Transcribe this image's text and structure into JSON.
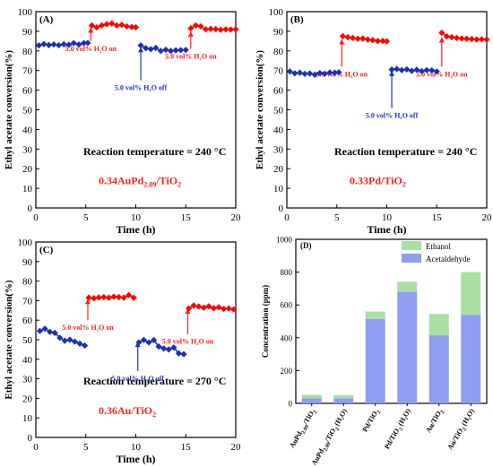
{
  "colors": {
    "axis": "#000000",
    "h2o_on": "#ff2020",
    "h2o_off": "#1f35b5",
    "pts_on": "#ff0000",
    "pts_off": "#1c2fb8",
    "ethanol": "#a9e0a1",
    "acetaldehyde": "#8f9ef0"
  },
  "chart_data": [
    {
      "panel": "(A)",
      "type": "scatter",
      "xlabel": "Time (h)",
      "ylabel": "Ethyl acetate conversion(%)",
      "xlim": [
        0,
        20
      ],
      "ylim": [
        0,
        100
      ],
      "xticks": [
        0,
        5,
        10,
        15,
        20
      ],
      "yticks": [
        0,
        10,
        20,
        30,
        40,
        50,
        60,
        70,
        80,
        90,
        100
      ],
      "temperature_label": "Reaction temperature = 240 °C",
      "catalyst": {
        "base": "0.34AuPd",
        "sub": "2.09",
        "mid": "/TiO",
        "sub2": "2"
      },
      "annotations": [
        {
          "text": "5.0 vol% H₂O on",
          "state": "on",
          "x": 5.5,
          "y_from": 85,
          "y_to": 92
        },
        {
          "text": "5.0 vol% H₂O off",
          "state": "off",
          "x": 10.5,
          "y_from": 65,
          "y_to": 82
        },
        {
          "text": "5.0 vol% H₂O on",
          "state": "on",
          "x": 15.5,
          "y_from": 81,
          "y_to": 90
        }
      ],
      "series": [
        {
          "state": "off",
          "x": [
            0.3,
            0.8,
            1.3,
            1.8,
            2.3,
            2.8,
            3.3,
            3.8,
            4.3,
            4.8,
            5.2
          ],
          "y": [
            82.8,
            83.5,
            83.0,
            83.3,
            82.9,
            83.4,
            83.1,
            84.0,
            83.2,
            84.0,
            84.1
          ]
        },
        {
          "state": "on",
          "x": [
            5.6,
            6.1,
            6.6,
            7.1,
            7.6,
            8.1,
            8.6,
            9.1,
            9.6,
            10.0
          ],
          "y": [
            93.0,
            92.0,
            93.0,
            93.6,
            94.0,
            93.0,
            93.3,
            92.5,
            92.2,
            92.0
          ]
        },
        {
          "state": "off",
          "x": [
            10.5,
            11.0,
            11.5,
            12.0,
            12.5,
            13.0,
            13.5,
            14.0,
            14.5,
            15.0
          ],
          "y": [
            82.8,
            81.4,
            80.9,
            81.5,
            80.0,
            80.6,
            80.0,
            80.3,
            80.4,
            80.5
          ]
        },
        {
          "state": "on",
          "x": [
            15.5,
            16.0,
            16.5,
            17.0,
            17.5,
            18.0,
            18.5,
            19.0,
            19.5,
            20.0
          ],
          "y": [
            91.5,
            93.0,
            92.5,
            91.0,
            91.2,
            91.1,
            90.8,
            91.0,
            90.9,
            91.0
          ]
        }
      ]
    },
    {
      "panel": "(B)",
      "type": "scatter",
      "xlabel": "Time (h)",
      "ylabel": "Ethyl acetate conversion(%)",
      "xlim": [
        0,
        20
      ],
      "ylim": [
        0,
        100
      ],
      "xticks": [
        0,
        5,
        10,
        15,
        20
      ],
      "yticks": [
        0,
        10,
        20,
        30,
        40,
        50,
        60,
        70,
        80,
        90,
        100
      ],
      "temperature_label": "Reaction temperature = 240 °C",
      "catalyst": {
        "base": "0.33Pd/TiO",
        "sub": "",
        "mid": "",
        "sub2": "2"
      },
      "annotations": [
        {
          "text": "5.0 vol% H₂O on",
          "state": "on",
          "x": 5.5,
          "y_from": 72,
          "y_to": 86
        },
        {
          "text": "5.0 vol% H₂O off",
          "state": "off",
          "x": 10.5,
          "y_from": 51,
          "y_to": 70
        },
        {
          "text": "5.0 vol% H₂O on",
          "state": "on",
          "x": 15.5,
          "y_from": 72,
          "y_to": 87
        }
      ],
      "series": [
        {
          "state": "off",
          "x": [
            0.3,
            0.8,
            1.3,
            1.8,
            2.3,
            2.8,
            3.3,
            3.8,
            4.3,
            4.8,
            5.2
          ],
          "y": [
            69.5,
            68.6,
            68.9,
            68.3,
            68.5,
            67.9,
            68.7,
            68.4,
            69.0,
            68.9,
            69.1
          ]
        },
        {
          "state": "on",
          "x": [
            5.6,
            6.1,
            6.6,
            7.1,
            7.6,
            8.1,
            8.6,
            9.1,
            9.6,
            10.0
          ],
          "y": [
            87.5,
            87.0,
            86.6,
            86.2,
            86.3,
            85.8,
            85.5,
            85.0,
            85.1,
            84.9
          ]
        },
        {
          "state": "off",
          "x": [
            10.5,
            11.0,
            11.5,
            12.0,
            12.5,
            13.0,
            13.5,
            14.0,
            14.5,
            15.0
          ],
          "y": [
            70.5,
            70.8,
            70.2,
            70.6,
            69.8,
            70.4,
            69.7,
            70.2,
            70.1,
            69.5
          ]
        },
        {
          "state": "on",
          "x": [
            15.5,
            16.0,
            16.5,
            17.0,
            17.5,
            18.0,
            18.5,
            19.0,
            19.5,
            20.0
          ],
          "y": [
            89.2,
            87.4,
            87.0,
            86.6,
            86.3,
            86.2,
            86.0,
            85.8,
            85.9,
            85.8
          ]
        }
      ]
    },
    {
      "panel": "(C)",
      "type": "scatter",
      "xlabel": "Time (h)",
      "ylabel": "Ethyl acetate conversion(%)",
      "xlim": [
        0,
        20
      ],
      "ylim": [
        0,
        100
      ],
      "xticks": [
        0,
        5,
        10,
        15,
        20
      ],
      "yticks": [
        0,
        10,
        20,
        30,
        40,
        50,
        60,
        70,
        80,
        90,
        100
      ],
      "temperature_label": "Reaction temperature = 270 °C",
      "catalyst": {
        "base": "0.36Au/TiO",
        "sub": "",
        "mid": "",
        "sub2": "2"
      },
      "annotations": [
        {
          "text": "5.0 vol% H₂O on",
          "state": "on",
          "x": 5.2,
          "y_from": 60,
          "y_to": 71
        },
        {
          "text": "5.0 vol% H₂O off",
          "state": "off",
          "x": 10.2,
          "y_from": 34,
          "y_to": 49
        },
        {
          "text": "5.0 vol% H₂O on",
          "state": "on",
          "x": 15.2,
          "y_from": 53,
          "y_to": 66
        }
      ],
      "series": [
        {
          "state": "off",
          "x": [
            0.4,
            0.9,
            1.4,
            1.9,
            2.4,
            2.9,
            3.4,
            3.9,
            4.4,
            4.9
          ],
          "y": [
            54.5,
            55.6,
            54.0,
            53.5,
            51.0,
            49.5,
            50.0,
            49.0,
            48.0,
            47.0
          ]
        },
        {
          "state": "on",
          "x": [
            5.3,
            5.8,
            6.3,
            6.8,
            7.3,
            7.8,
            8.3,
            8.8,
            9.3,
            9.8
          ],
          "y": [
            71.5,
            71.2,
            71.6,
            71.8,
            71.5,
            72.0,
            71.8,
            71.5,
            72.8,
            71.5
          ]
        },
        {
          "state": "off",
          "x": [
            10.3,
            10.8,
            11.3,
            11.8,
            12.3,
            12.8,
            13.3,
            13.8,
            14.3,
            14.8
          ],
          "y": [
            48.6,
            49.9,
            48.6,
            49.8,
            46.5,
            45.5,
            45.0,
            46.0,
            43.0,
            42.6
          ]
        },
        {
          "state": "on",
          "x": [
            15.3,
            15.8,
            16.3,
            16.8,
            17.3,
            17.8,
            18.3,
            18.8,
            19.3,
            19.8
          ],
          "y": [
            66.0,
            67.5,
            67.0,
            66.4,
            67.1,
            66.1,
            66.6,
            65.8,
            66.0,
            65.5
          ]
        }
      ]
    },
    {
      "panel": "(D)",
      "type": "bar",
      "stacked": true,
      "ylabel": "Concentration (ppm)",
      "ylim": [
        0,
        1000
      ],
      "yticks": [
        0,
        200,
        400,
        600,
        800,
        1000
      ],
      "legend_position": "top-right",
      "categories": [
        {
          "base": "AuPd",
          "sub": "2.09",
          "mid": "/TiO",
          "sub2": "2",
          "tail": ""
        },
        {
          "base": "AuPd",
          "sub": "2.09",
          "mid": "/TiO",
          "sub2": "2",
          "tail": " (H₂O)"
        },
        {
          "base": "Pd/TiO",
          "sub": "",
          "mid": "",
          "sub2": "2",
          "tail": ""
        },
        {
          "base": "Pd/TiO",
          "sub": "",
          "mid": "",
          "sub2": "2",
          "tail": " (H₂O)"
        },
        {
          "base": "Au/TiO",
          "sub": "",
          "mid": "",
          "sub2": "2",
          "tail": ""
        },
        {
          "base": "Au/TiO",
          "sub": "",
          "mid": "",
          "sub2": "2",
          "tail": " (H₂O)"
        }
      ],
      "series": [
        {
          "name": "Acetaldehyde",
          "color_key": "acetaldehyde",
          "values": [
            30,
            30,
            515,
            680,
            415,
            540
          ]
        },
        {
          "name": "Ethanol",
          "color_key": "ethanol",
          "values": [
            22,
            20,
            45,
            62,
            130,
            260
          ]
        }
      ]
    }
  ]
}
